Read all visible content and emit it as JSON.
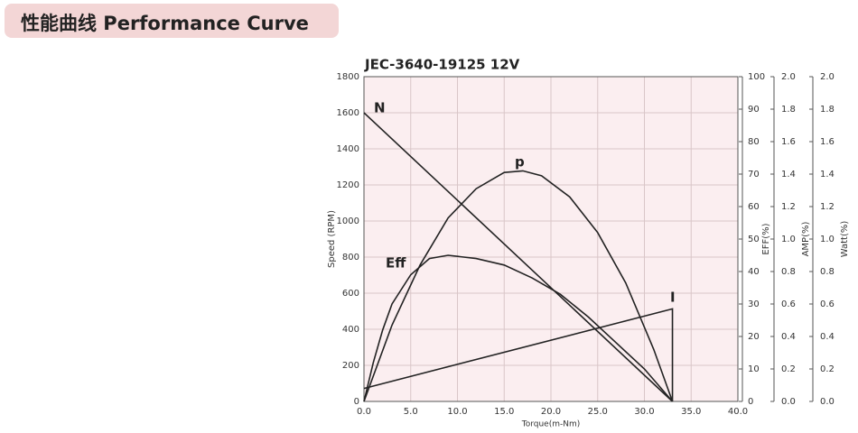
{
  "header": {
    "title": "性能曲线 Performance Curve"
  },
  "chart_data": {
    "type": "line",
    "title": "JEC-3640-19125    12V",
    "x_label": "Torque(m-Nm)",
    "y_label": "Speed (RPM)",
    "y2_label": "EFF(%)",
    "y3_label": "AMP(%)",
    "y4_label": "Watt(%)",
    "xlim": [
      0,
      40
    ],
    "xticks": [
      {
        "value": 0,
        "label": "0.0"
      },
      {
        "value": 5,
        "label": "5.0"
      },
      {
        "value": 10,
        "label": "10.0"
      },
      {
        "value": 15,
        "label": "15.0"
      },
      {
        "value": 20,
        "label": "20.0"
      },
      {
        "value": 25,
        "label": "25.0"
      },
      {
        "value": 30,
        "label": "30.0"
      },
      {
        "value": 35,
        "label": "35.0"
      },
      {
        "value": 40,
        "label": "40.0"
      }
    ],
    "ylim": [
      0,
      1800
    ],
    "yticks": [
      0,
      200,
      400,
      600,
      800,
      1000,
      1200,
      1400,
      1600,
      1800
    ],
    "y2lim": [
      0,
      100
    ],
    "y2ticks": [
      0,
      10,
      20,
      30,
      40,
      50,
      60,
      70,
      80,
      90,
      100
    ],
    "y3lim": [
      0,
      2
    ],
    "y3ticks": [
      {
        "value": 0,
        "label": "0.0"
      },
      0.2,
      0.4,
      0.6,
      0.8,
      {
        "value": 1,
        "label": "1.0"
      },
      1.2,
      1.4,
      1.6,
      1.8,
      {
        "value": 2,
        "label": "2.0"
      }
    ],
    "y4lim": [
      0,
      2
    ],
    "y4ticks": [
      {
        "value": 0,
        "label": "0.0"
      },
      0.2,
      0.4,
      0.6,
      0.8,
      {
        "value": 1,
        "label": "1.0"
      },
      1.2,
      1.4,
      1.6,
      1.8,
      {
        "value": 2,
        "label": "2.0"
      }
    ],
    "grid": true,
    "series": [
      {
        "name": "N",
        "color": "#222222",
        "axis": "y",
        "x": [
          0,
          33
        ],
        "values": [
          1600,
          0
        ]
      },
      {
        "name": "p",
        "color": "#222222",
        "axis": "y4",
        "x": [
          0,
          3,
          6,
          9,
          12,
          15,
          17,
          19,
          22,
          25,
          28,
          31,
          33
        ],
        "values": [
          0,
          0.47,
          0.84,
          1.13,
          1.31,
          1.41,
          1.42,
          1.39,
          1.26,
          1.04,
          0.73,
          0.32,
          0
        ]
      },
      {
        "name": "Eff",
        "color": "#222222",
        "axis": "y2",
        "x": [
          0,
          1,
          2,
          3,
          5,
          7,
          9,
          12,
          15,
          18,
          21,
          24,
          27,
          30,
          33
        ],
        "values": [
          0,
          12,
          22,
          30,
          39,
          44,
          45,
          44,
          42,
          38,
          33,
          26,
          18,
          10,
          0
        ]
      },
      {
        "name": "I",
        "color": "#222222",
        "axis": "y3",
        "x": [
          0,
          33,
          33
        ],
        "values": [
          0.08,
          0.57,
          0
        ]
      }
    ]
  }
}
